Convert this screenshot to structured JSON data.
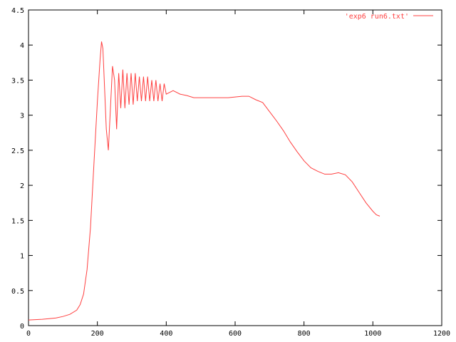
{
  "chart_data": {
    "type": "line",
    "title": "",
    "xlabel": "",
    "ylabel": "",
    "xlim": [
      0,
      1200
    ],
    "ylim": [
      0,
      4.5
    ],
    "xticks": [
      0,
      200,
      400,
      600,
      800,
      1000,
      1200
    ],
    "yticks": [
      0,
      0.5,
      1,
      1.5,
      2,
      2.5,
      3,
      3.5,
      4,
      4.5
    ],
    "xtick_labels": [
      "0",
      "200",
      "400",
      "600",
      "800",
      "1000",
      "1200"
    ],
    "ytick_labels": [
      "0",
      "0.5",
      "1",
      "1.5",
      "2",
      "2.5",
      "3",
      "3.5",
      "4",
      "4.5"
    ],
    "grid": false,
    "legend_position": "top-right",
    "series": [
      {
        "name": "'exp6 run6.txt'",
        "color": "#ff4040",
        "x": [
          0,
          20,
          40,
          60,
          80,
          100,
          120,
          140,
          150,
          160,
          170,
          180,
          190,
          200,
          208,
          212,
          216,
          220,
          226,
          232,
          238,
          244,
          250,
          256,
          262,
          268,
          274,
          280,
          286,
          292,
          298,
          304,
          310,
          316,
          322,
          328,
          334,
          340,
          346,
          352,
          358,
          364,
          370,
          376,
          382,
          388,
          394,
          400,
          420,
          440,
          460,
          480,
          500,
          520,
          540,
          560,
          580,
          600,
          620,
          640,
          660,
          680,
          700,
          720,
          740,
          760,
          780,
          800,
          820,
          840,
          860,
          880,
          900,
          920,
          940,
          960,
          980,
          1000,
          1010,
          1020
        ],
        "y": [
          0.08,
          0.085,
          0.09,
          0.1,
          0.11,
          0.13,
          0.16,
          0.22,
          0.3,
          0.45,
          0.8,
          1.4,
          2.3,
          3.2,
          3.8,
          4.05,
          3.95,
          3.5,
          2.8,
          2.5,
          3.1,
          3.7,
          3.5,
          2.8,
          3.6,
          3.1,
          3.65,
          3.1,
          3.6,
          3.15,
          3.6,
          3.15,
          3.6,
          3.2,
          3.55,
          3.2,
          3.55,
          3.2,
          3.55,
          3.2,
          3.5,
          3.2,
          3.5,
          3.2,
          3.45,
          3.2,
          3.45,
          3.3,
          3.35,
          3.3,
          3.28,
          3.25,
          3.25,
          3.25,
          3.25,
          3.25,
          3.25,
          3.26,
          3.27,
          3.27,
          3.22,
          3.18,
          3.05,
          2.92,
          2.78,
          2.62,
          2.48,
          2.35,
          2.25,
          2.2,
          2.16,
          2.16,
          2.18,
          2.15,
          2.05,
          1.9,
          1.75,
          1.63,
          1.58,
          1.56
        ]
      }
    ]
  }
}
